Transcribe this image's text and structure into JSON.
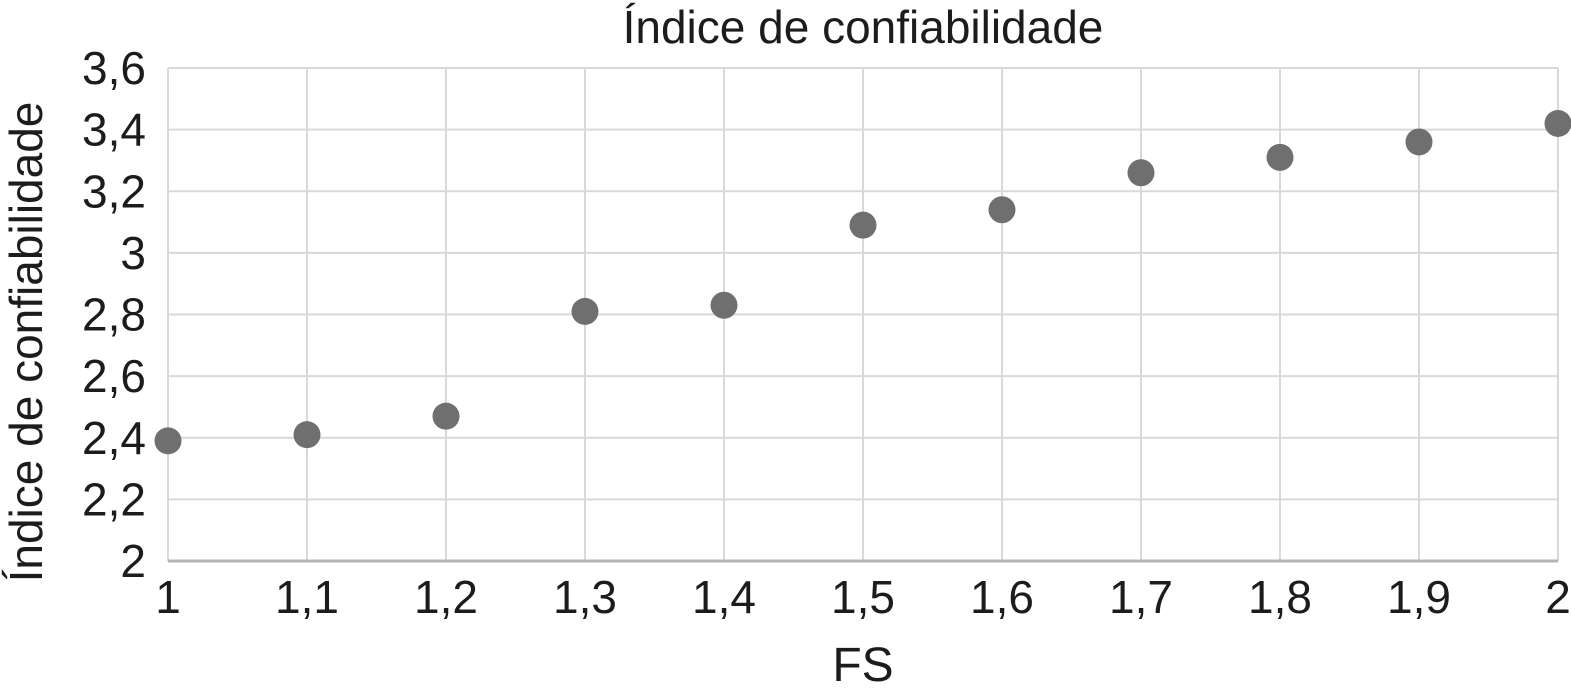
{
  "chart_data": {
    "type": "scatter",
    "title": "Índice de confiabilidade",
    "xlabel": "FS",
    "ylabel": "Índice de confiabilidade",
    "x": [
      1,
      1.1,
      1.2,
      1.3,
      1.4,
      1.5,
      1.6,
      1.7,
      1.8,
      1.9,
      2
    ],
    "y": [
      2.39,
      2.41,
      2.47,
      2.81,
      2.83,
      3.09,
      3.14,
      3.26,
      3.31,
      3.36,
      3.42
    ],
    "xlim": [
      1,
      2
    ],
    "ylim": [
      2,
      3.6
    ],
    "x_ticks": [
      1,
      1.1,
      1.2,
      1.3,
      1.4,
      1.5,
      1.6,
      1.7,
      1.8,
      1.9,
      2
    ],
    "x_tick_labels": [
      "1",
      "1,1",
      "1,2",
      "1,3",
      "1,4",
      "1,5",
      "1,6",
      "1,7",
      "1,8",
      "1,9",
      "2"
    ],
    "y_ticks": [
      2,
      2.2,
      2.4,
      2.6,
      2.8,
      3,
      3.2,
      3.4,
      3.6
    ],
    "y_tick_labels": [
      "2",
      "2,2",
      "2,4",
      "2,6",
      "2,8",
      "3",
      "3,2",
      "3,4",
      "3,6"
    ],
    "grid": true,
    "legend": false,
    "decimal_separator": ",",
    "marker_color": "#6f6f6f",
    "grid_color": "#d9d9d9",
    "axis_color": "#b5b5b5",
    "text_color": "#1c1c1c",
    "background_color": "#ffffff"
  }
}
